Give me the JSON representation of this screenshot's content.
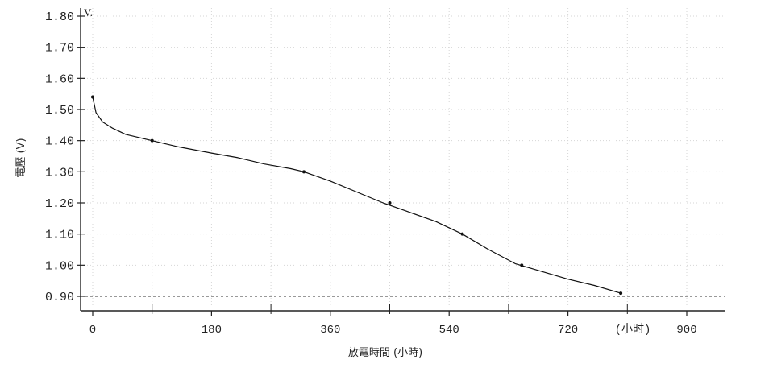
{
  "chart_data": {
    "type": "line",
    "title": "",
    "xlabel": "放電時間 (小時)",
    "ylabel": "電壓 (V)",
    "y_unit_label": "V.",
    "x_unit_label": "(小时)",
    "xlim": [
      0,
      960
    ],
    "ylim": [
      0.88,
      1.8
    ],
    "x_ticks": [
      "0",
      "180",
      "360",
      "540",
      "720",
      "900"
    ],
    "x_tick_values": [
      0,
      180,
      360,
      540,
      720,
      900
    ],
    "x_minor_tick_values": [
      90,
      270,
      450,
      630,
      810
    ],
    "y_ticks": [
      "1.80",
      "1.70",
      "1.60",
      "1.50",
      "1.40",
      "1.30",
      "1.20",
      "1.10",
      "1.00",
      "0.90"
    ],
    "y_tick_values": [
      1.8,
      1.7,
      1.6,
      1.5,
      1.4,
      1.3,
      1.2,
      1.1,
      1.0,
      0.9
    ],
    "grid": true,
    "cutoff_voltage": 0.9,
    "series": [
      {
        "x": [
          0,
          5,
          15,
          30,
          50,
          70,
          90,
          130,
          180,
          220,
          260,
          300,
          320,
          360,
          400,
          440,
          480,
          520,
          560,
          600,
          640,
          680,
          720,
          760,
          800
        ],
        "y": [
          1.54,
          1.49,
          1.46,
          1.44,
          1.42,
          1.41,
          1.4,
          1.38,
          1.36,
          1.345,
          1.325,
          1.31,
          1.3,
          1.27,
          1.235,
          1.2,
          1.17,
          1.14,
          1.1,
          1.05,
          1.005,
          0.98,
          0.955,
          0.935,
          0.91
        ],
        "markers_x": [
          0,
          90,
          320,
          450,
          560,
          650,
          800
        ],
        "markers_y": [
          1.54,
          1.4,
          1.3,
          1.2,
          1.1,
          1.0,
          0.91
        ]
      }
    ]
  }
}
